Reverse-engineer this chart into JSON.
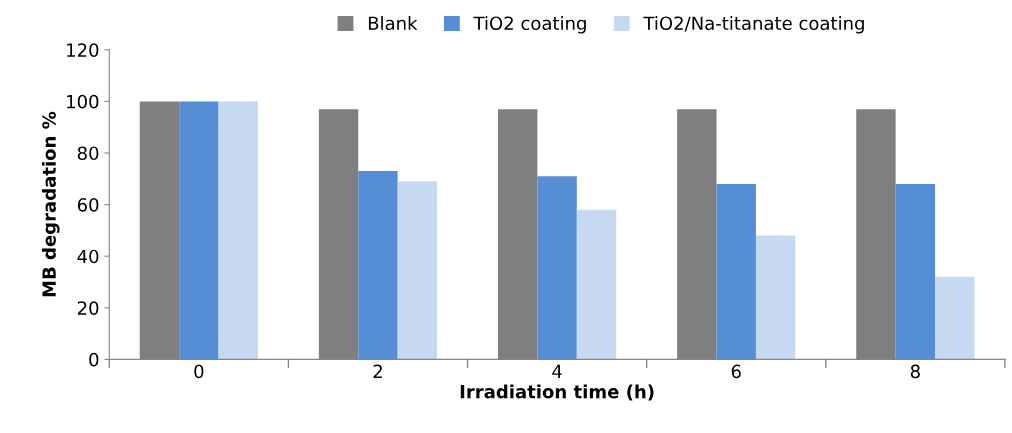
{
  "chart_data": {
    "type": "bar",
    "xlabel": "Irradiation time (h)",
    "ylabel": "MB degradation %",
    "categories": [
      "0",
      "2",
      "4",
      "6",
      "8"
    ],
    "series": [
      {
        "name": "Blank",
        "color": "#7f7f7f",
        "values": [
          100,
          97,
          97,
          97,
          97
        ]
      },
      {
        "name": "TiO2 coating",
        "color": "#558ed5",
        "values": [
          100,
          73,
          71,
          68,
          68
        ]
      },
      {
        "name": "TiO2/Na-titanate coating",
        "color": "#c6d9f1",
        "values": [
          100,
          69,
          58,
          48,
          32
        ]
      }
    ],
    "ylim": [
      0,
      120
    ],
    "yticks": [
      0,
      20,
      40,
      60,
      80,
      100,
      120
    ],
    "legend": "top",
    "grid": false
  }
}
